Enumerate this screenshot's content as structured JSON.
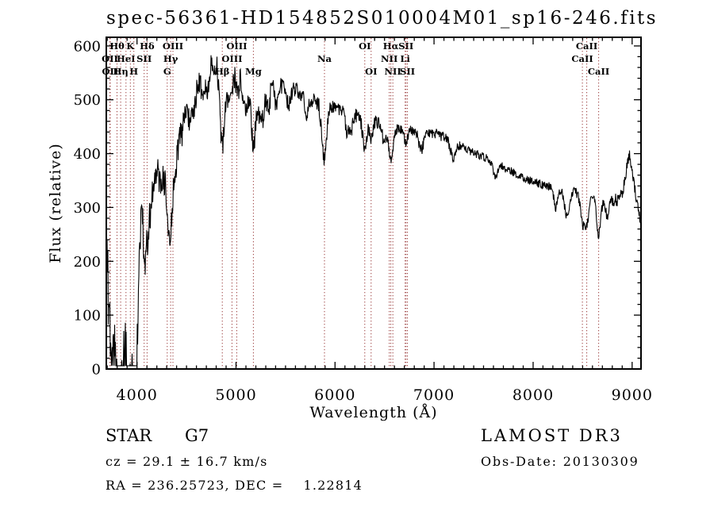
{
  "chart_data": {
    "type": "line",
    "title": "spec-56361-HD154852S010004M01_sp16-246.fits",
    "xlabel": "Wavelength (Å)",
    "ylabel": "Flux (relative)",
    "xlim": [
      3690,
      9090
    ],
    "ylim": [
      0,
      616
    ],
    "xticks": [
      4000,
      5000,
      6000,
      7000,
      8000,
      9000
    ],
    "yticks": [
      0,
      100,
      200,
      300,
      400,
      500,
      600
    ],
    "x_minor_step": 100,
    "y_minor_step": 20,
    "grid": false,
    "legend": "none",
    "line_color": "#000000",
    "marker_line_color": "#993939",
    "series": [
      {
        "name": "spectrum",
        "continuum": [
          [
            3690,
            240
          ],
          [
            3700,
            250
          ],
          [
            3727,
            245
          ],
          [
            3760,
            225
          ],
          [
            3790,
            205
          ],
          [
            3830,
            192
          ],
          [
            3870,
            197
          ],
          [
            3900,
            212
          ],
          [
            3930,
            228
          ],
          [
            3960,
            245
          ],
          [
            4000,
            300
          ],
          [
            4040,
            345
          ],
          [
            4080,
            370
          ],
          [
            4120,
            390
          ],
          [
            4160,
            405
          ],
          [
            4200,
            418
          ],
          [
            4250,
            432
          ],
          [
            4300,
            442
          ],
          [
            4350,
            458
          ],
          [
            4400,
            472
          ],
          [
            4450,
            487
          ],
          [
            4500,
            500
          ],
          [
            4550,
            515
          ],
          [
            4600,
            530
          ],
          [
            4650,
            543
          ],
          [
            4700,
            554
          ],
          [
            4750,
            562
          ],
          [
            4805,
            572
          ],
          [
            4850,
            566
          ],
          [
            4900,
            566
          ],
          [
            4950,
            562
          ],
          [
            5000,
            557
          ],
          [
            5050,
            552
          ],
          [
            5100,
            549
          ],
          [
            5150,
            546
          ],
          [
            5200,
            542
          ],
          [
            5250,
            539
          ],
          [
            5300,
            536
          ],
          [
            5350,
            533
          ],
          [
            5400,
            530
          ],
          [
            5450,
            528
          ],
          [
            5500,
            524
          ],
          [
            5550,
            520
          ],
          [
            5600,
            516
          ],
          [
            5650,
            512
          ],
          [
            5700,
            508
          ],
          [
            5750,
            504
          ],
          [
            5800,
            500
          ],
          [
            5850,
            496
          ],
          [
            5900,
            492
          ],
          [
            5950,
            488
          ],
          [
            6000,
            484
          ],
          [
            6050,
            480
          ],
          [
            6100,
            477
          ],
          [
            6150,
            474
          ],
          [
            6200,
            471
          ],
          [
            6250,
            468
          ],
          [
            6300,
            465
          ],
          [
            6350,
            462
          ],
          [
            6400,
            459
          ],
          [
            6450,
            456
          ],
          [
            6500,
            453
          ],
          [
            6550,
            451
          ],
          [
            6600,
            449
          ],
          [
            6650,
            447
          ],
          [
            6700,
            446
          ],
          [
            6750,
            444
          ],
          [
            6800,
            443
          ],
          [
            6850,
            442
          ],
          [
            6900,
            441
          ],
          [
            6950,
            440
          ],
          [
            7000,
            438
          ],
          [
            7050,
            434
          ],
          [
            7100,
            430
          ],
          [
            7150,
            426
          ],
          [
            7200,
            421
          ],
          [
            7250,
            416
          ],
          [
            7300,
            411
          ],
          [
            7350,
            406
          ],
          [
            7400,
            402
          ],
          [
            7450,
            398
          ],
          [
            7500,
            394
          ],
          [
            7550,
            390
          ],
          [
            7600,
            385
          ],
          [
            7650,
            380
          ],
          [
            7700,
            375
          ],
          [
            7750,
            370
          ],
          [
            7800,
            365
          ],
          [
            7850,
            360
          ],
          [
            7900,
            355
          ],
          [
            7950,
            351
          ],
          [
            8000,
            348
          ],
          [
            8050,
            345
          ],
          [
            8100,
            342
          ],
          [
            8150,
            340
          ],
          [
            8200,
            338
          ],
          [
            8250,
            336
          ],
          [
            8300,
            334
          ],
          [
            8350,
            332
          ],
          [
            8400,
            330
          ],
          [
            8450,
            328
          ],
          [
            8500,
            326
          ],
          [
            8550,
            324
          ],
          [
            8600,
            322
          ],
          [
            8650,
            319
          ],
          [
            8700,
            316
          ],
          [
            8750,
            314
          ],
          [
            8800,
            312
          ],
          [
            8850,
            314
          ],
          [
            8900,
            325
          ],
          [
            8930,
            350
          ],
          [
            8955,
            390
          ],
          [
            8975,
            398
          ],
          [
            9000,
            370
          ],
          [
            9025,
            335
          ],
          [
            9050,
            305
          ],
          [
            9070,
            285
          ],
          [
            9090,
            272
          ]
        ],
        "absorption_features": [
          [
            3727,
            -110,
            2.5
          ],
          [
            3750,
            -130,
            2
          ],
          [
            3770,
            -95,
            2
          ],
          [
            3798,
            -140,
            2.5
          ],
          [
            3820,
            -85,
            2
          ],
          [
            3835,
            -150,
            2.5
          ],
          [
            3860,
            -75,
            2
          ],
          [
            3889,
            -115,
            2.5
          ],
          [
            3910,
            -85,
            2
          ],
          [
            3933,
            -160,
            3
          ],
          [
            3968,
            -150,
            3
          ],
          [
            3995,
            -175,
            2.5
          ],
          [
            4026,
            -60,
            2
          ],
          [
            4077,
            -65,
            2
          ],
          [
            4101,
            -130,
            3
          ],
          [
            4144,
            -60,
            2
          ],
          [
            4180,
            -45,
            2
          ],
          [
            4226,
            -75,
            2
          ],
          [
            4260,
            -50,
            2
          ],
          [
            4305,
            -95,
            3.5
          ],
          [
            4340,
            -150,
            3
          ],
          [
            4383,
            -75,
            2
          ],
          [
            4415,
            -50,
            2
          ],
          [
            4455,
            -50,
            2
          ],
          [
            4531,
            -48,
            2
          ],
          [
            4580,
            -40,
            2
          ],
          [
            4668,
            -45,
            2
          ],
          [
            4710,
            -40,
            2
          ],
          [
            4861,
            -150,
            3
          ],
          [
            4920,
            -55,
            2
          ],
          [
            4957,
            -45,
            2
          ],
          [
            5015,
            -45,
            2
          ],
          [
            5075,
            -40,
            2
          ],
          [
            5110,
            -55,
            2
          ],
          [
            5167,
            -65,
            3
          ],
          [
            5184,
            -70,
            3
          ],
          [
            5230,
            -45,
            2
          ],
          [
            5270,
            -75,
            2.5
          ],
          [
            5328,
            -50,
            2
          ],
          [
            5406,
            -45,
            2
          ],
          [
            5530,
            -35,
            2
          ],
          [
            5712,
            -35,
            2
          ],
          [
            5890,
            -100,
            3
          ],
          [
            6122,
            -35,
            2
          ],
          [
            6162,
            -30,
            2
          ],
          [
            6300,
            -58,
            2.5
          ],
          [
            6363,
            -30,
            2
          ],
          [
            6495,
            -35,
            2
          ],
          [
            6563,
            -60,
            3
          ],
          [
            6717,
            -28,
            2
          ],
          [
            6870,
            -35,
            3
          ],
          [
            7190,
            -28,
            3
          ],
          [
            7620,
            -25,
            3
          ],
          [
            8227,
            -35,
            2.5
          ],
          [
            8340,
            -48,
            3
          ],
          [
            8498,
            -52,
            2.5
          ],
          [
            8542,
            -56,
            2.5
          ],
          [
            8662,
            -70,
            2.5
          ],
          [
            8750,
            -32,
            2
          ]
        ],
        "noise_bands": [
          [
            3800,
            95
          ],
          [
            3950,
            80
          ],
          [
            4100,
            55
          ],
          [
            4300,
            30
          ],
          [
            4500,
            26
          ],
          [
            4750,
            24
          ],
          [
            5350,
            22
          ],
          [
            5900,
            16
          ],
          [
            6500,
            13
          ],
          [
            7200,
            10
          ],
          [
            8200,
            8
          ],
          [
            8800,
            10
          ],
          [
            9100,
            12
          ]
        ]
      }
    ],
    "spectral_line_markers": [
      {
        "label": "Hθ",
        "wavelength": 3798,
        "row": 1
      },
      {
        "label": "K",
        "wavelength": 3933,
        "row": 1
      },
      {
        "label": "Hδ",
        "wavelength": 4102,
        "row": 1
      },
      {
        "label": "OIII",
        "wavelength": 4363,
        "row": 1
      },
      {
        "label": "OIII",
        "wavelength": 5007,
        "row": 1
      },
      {
        "label": "OI",
        "wavelength": 6300,
        "row": 1
      },
      {
        "label": "Hα",
        "wavelength": 6563,
        "row": 1
      },
      {
        "label": "SII",
        "wavelength": 6717,
        "row": 1
      },
      {
        "label": "CaII",
        "wavelength": 8542,
        "row": 1
      },
      {
        "label": "OII",
        "wavelength": 3726,
        "row": 2
      },
      {
        "label": "HeI",
        "wavelength": 3889,
        "row": 2
      },
      {
        "label": "SII",
        "wavelength": 4072,
        "row": 2
      },
      {
        "label": "Hγ",
        "wavelength": 4340,
        "row": 2
      },
      {
        "label": "OIII",
        "wavelength": 4959,
        "row": 2
      },
      {
        "label": "Na",
        "wavelength": 5893,
        "row": 2
      },
      {
        "label": "NII",
        "wavelength": 6548,
        "row": 2
      },
      {
        "label": "Li",
        "wavelength": 6708,
        "row": 2
      },
      {
        "label": "CaII",
        "wavelength": 8498,
        "row": 2
      },
      {
        "label": "OII",
        "wavelength": 3729,
        "row": 3
      },
      {
        "label": "Hη",
        "wavelength": 3835,
        "row": 3
      },
      {
        "label": "H",
        "wavelength": 3968,
        "row": 3
      },
      {
        "label": "G",
        "wavelength": 4305,
        "row": 3
      },
      {
        "label": "Hβ",
        "wavelength": 4861,
        "row": 3
      },
      {
        "label": "Mg",
        "wavelength": 5175,
        "row": 3
      },
      {
        "label": "OI",
        "wavelength": 6364,
        "row": 3
      },
      {
        "label": "NII",
        "wavelength": 6584,
        "row": 3
      },
      {
        "label": "SII",
        "wavelength": 6731,
        "row": 3
      },
      {
        "label": "CaII",
        "wavelength": 8662,
        "row": 3
      }
    ]
  },
  "annotations": {
    "class": "STAR",
    "subclass": "G7",
    "cz": "cz = 29.1 ± 16.7 km/s",
    "radec": "RA = 236.25723, DEC =    1.22814",
    "survey": "LAMOST DR3",
    "obs_date": "Obs-Date: 20130309"
  }
}
